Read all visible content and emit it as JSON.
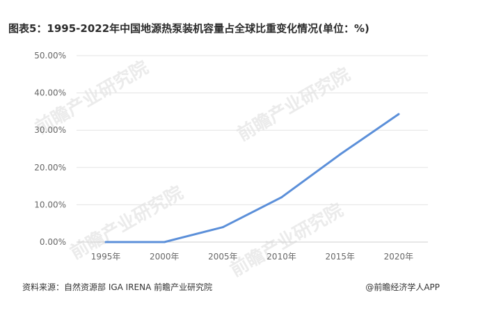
{
  "title": "图表5：1995-2022年中国地源热泵装机容量占全球比重变化情况(单位：%)",
  "footer": {
    "source": "资料来源：自然资源部 IGA IRENA 前瞻产业研究院",
    "brand": "@前瞻经济学人APP"
  },
  "watermark": "前瞻产业研究院",
  "chart_data": {
    "type": "line",
    "categories": [
      "1995年",
      "2000年",
      "2005年",
      "2010年",
      "2015年",
      "2020年"
    ],
    "y_ticks": [
      "0.00%",
      "10.00%",
      "20.00%",
      "30.00%",
      "40.00%",
      "50.00%"
    ],
    "ylim": [
      0,
      50
    ],
    "grid": true,
    "series": [
      {
        "values": [
          0.0,
          0.0,
          4.0,
          12.0,
          23.5,
          34.3
        ],
        "color": "#5b8fd9"
      }
    ]
  }
}
